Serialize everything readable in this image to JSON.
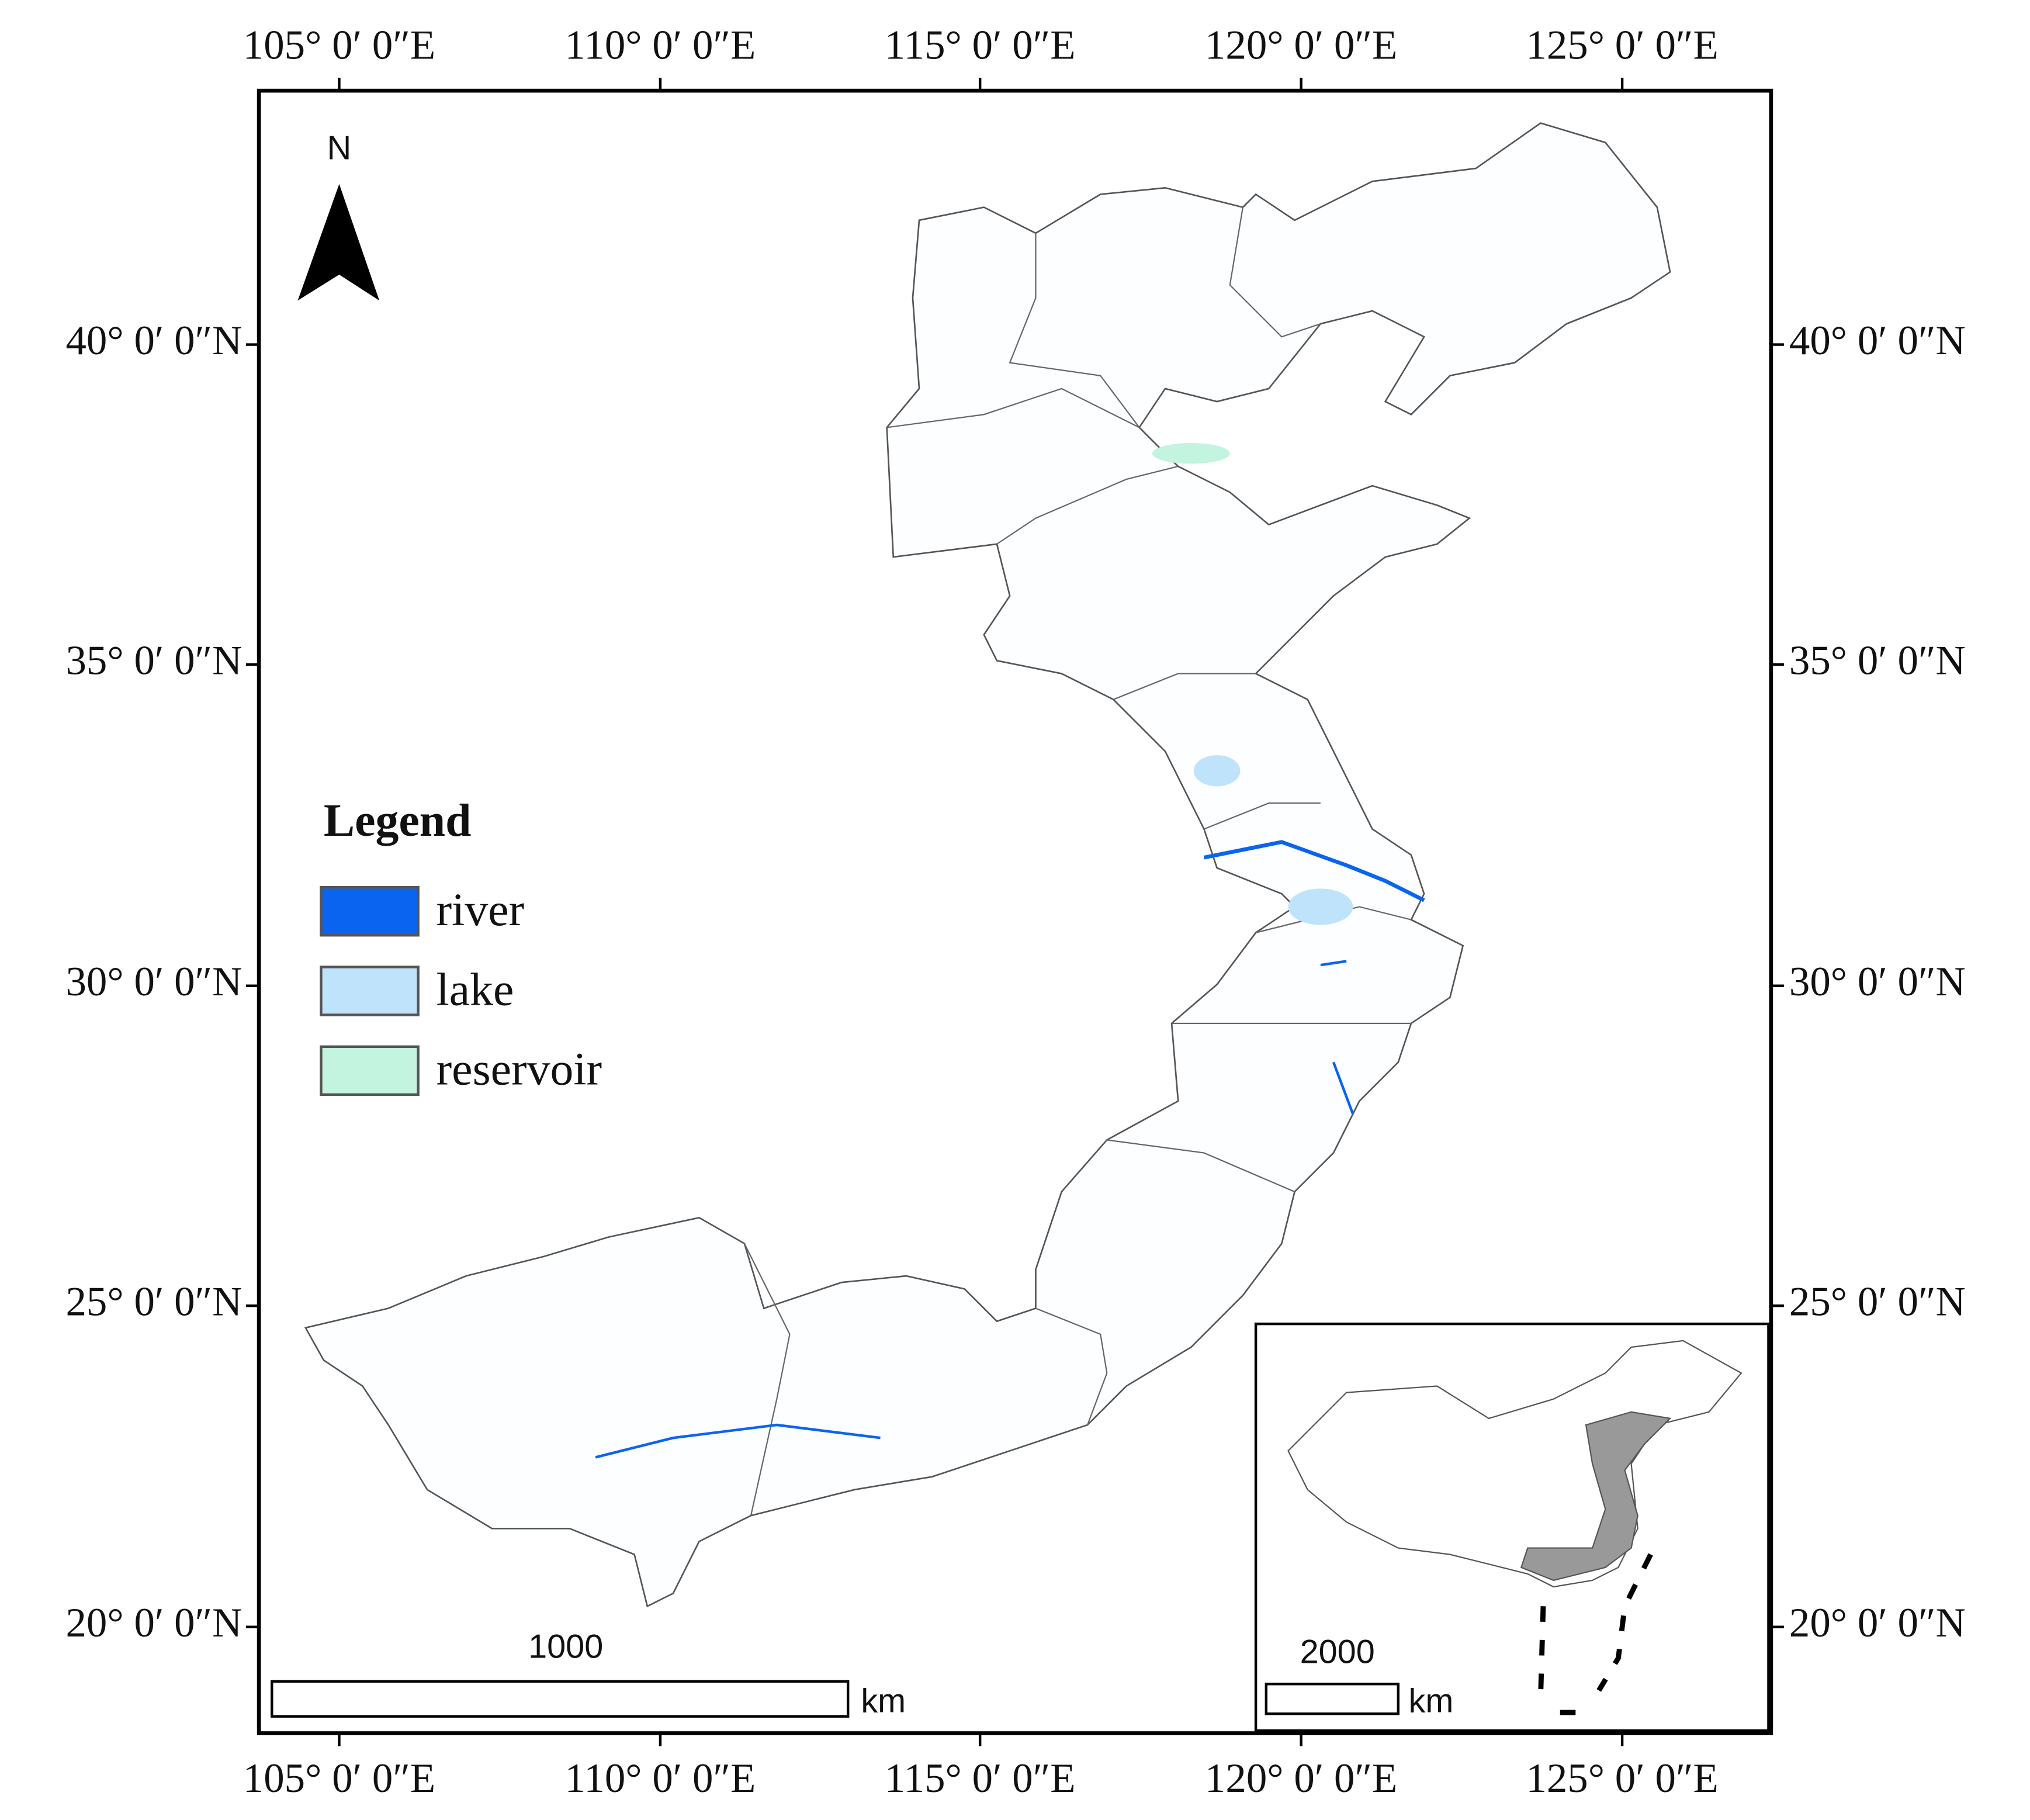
{
  "map": {
    "lon_labels": [
      "105° 0′ 0″E",
      "110° 0′ 0″E",
      "115° 0′ 0″E",
      "120° 0′ 0″E",
      "125° 0′ 0″E"
    ],
    "lat_labels": [
      "40° 0′ 0″N",
      "35° 0′ 0″N",
      "30° 0′ 0″N",
      "25° 0′ 0″N",
      "20° 0′ 0″N"
    ],
    "north": "N",
    "legend": {
      "title": "Legend",
      "items": [
        {
          "label": "river",
          "color": "#0a64f0"
        },
        {
          "label": "lake",
          "color": "#bfe3fb"
        },
        {
          "label": "reservoir",
          "color": "#c2f4e0"
        }
      ]
    },
    "scale_bar": {
      "distance": "1000",
      "unit": "km"
    },
    "inset": {
      "scale_bar": {
        "distance": "2000",
        "unit": "km"
      }
    }
  }
}
